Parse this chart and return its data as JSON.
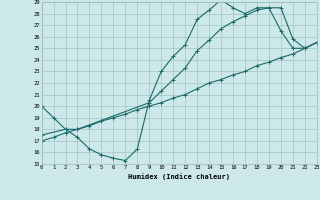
{
  "xlabel": "Humidex (Indice chaleur)",
  "xlim": [
    0,
    23
  ],
  "ylim": [
    15,
    29
  ],
  "xticks": [
    0,
    1,
    2,
    3,
    4,
    5,
    6,
    7,
    8,
    9,
    10,
    11,
    12,
    13,
    14,
    15,
    16,
    17,
    18,
    19,
    20,
    21,
    22,
    23
  ],
  "yticks": [
    15,
    16,
    17,
    18,
    19,
    20,
    21,
    22,
    23,
    24,
    25,
    26,
    27,
    28,
    29
  ],
  "bg_color": "#cce8e8",
  "grid_color": "#99bbbb",
  "line_color": "#1a6b6b",
  "line1_x": [
    0,
    1,
    2,
    3,
    4,
    5,
    6,
    7,
    8,
    9,
    10,
    11,
    12,
    13,
    14,
    15,
    16,
    17,
    18,
    19,
    20,
    21,
    22,
    23
  ],
  "line1_y": [
    20.0,
    19.0,
    18.0,
    17.3,
    16.3,
    15.8,
    15.5,
    15.3,
    16.3,
    20.5,
    23.0,
    24.3,
    25.3,
    27.5,
    28.3,
    29.2,
    28.5,
    28.0,
    28.5,
    28.5,
    28.5,
    25.8,
    25.0,
    25.5
  ],
  "line2_x": [
    0,
    1,
    2,
    3,
    4,
    5,
    6,
    7,
    8,
    9,
    10,
    11,
    12,
    13,
    14,
    15,
    16,
    17,
    18,
    19,
    20,
    21,
    22,
    23
  ],
  "line2_y": [
    17.0,
    17.3,
    17.7,
    18.0,
    18.3,
    18.7,
    19.0,
    19.3,
    19.7,
    20.0,
    20.3,
    20.7,
    21.0,
    21.5,
    22.0,
    22.3,
    22.7,
    23.0,
    23.5,
    23.8,
    24.2,
    24.5,
    25.0,
    25.5
  ],
  "line3_x": [
    0,
    2,
    3,
    9,
    10,
    11,
    12,
    13,
    14,
    15,
    16,
    17,
    18,
    19,
    20,
    21,
    22,
    23
  ],
  "line3_y": [
    17.5,
    18.0,
    18.0,
    20.3,
    21.3,
    22.3,
    23.3,
    24.8,
    25.7,
    26.7,
    27.3,
    27.8,
    28.3,
    28.5,
    26.5,
    25.0,
    25.0,
    25.5
  ],
  "marker_size": 2.5,
  "line_width": 0.8
}
